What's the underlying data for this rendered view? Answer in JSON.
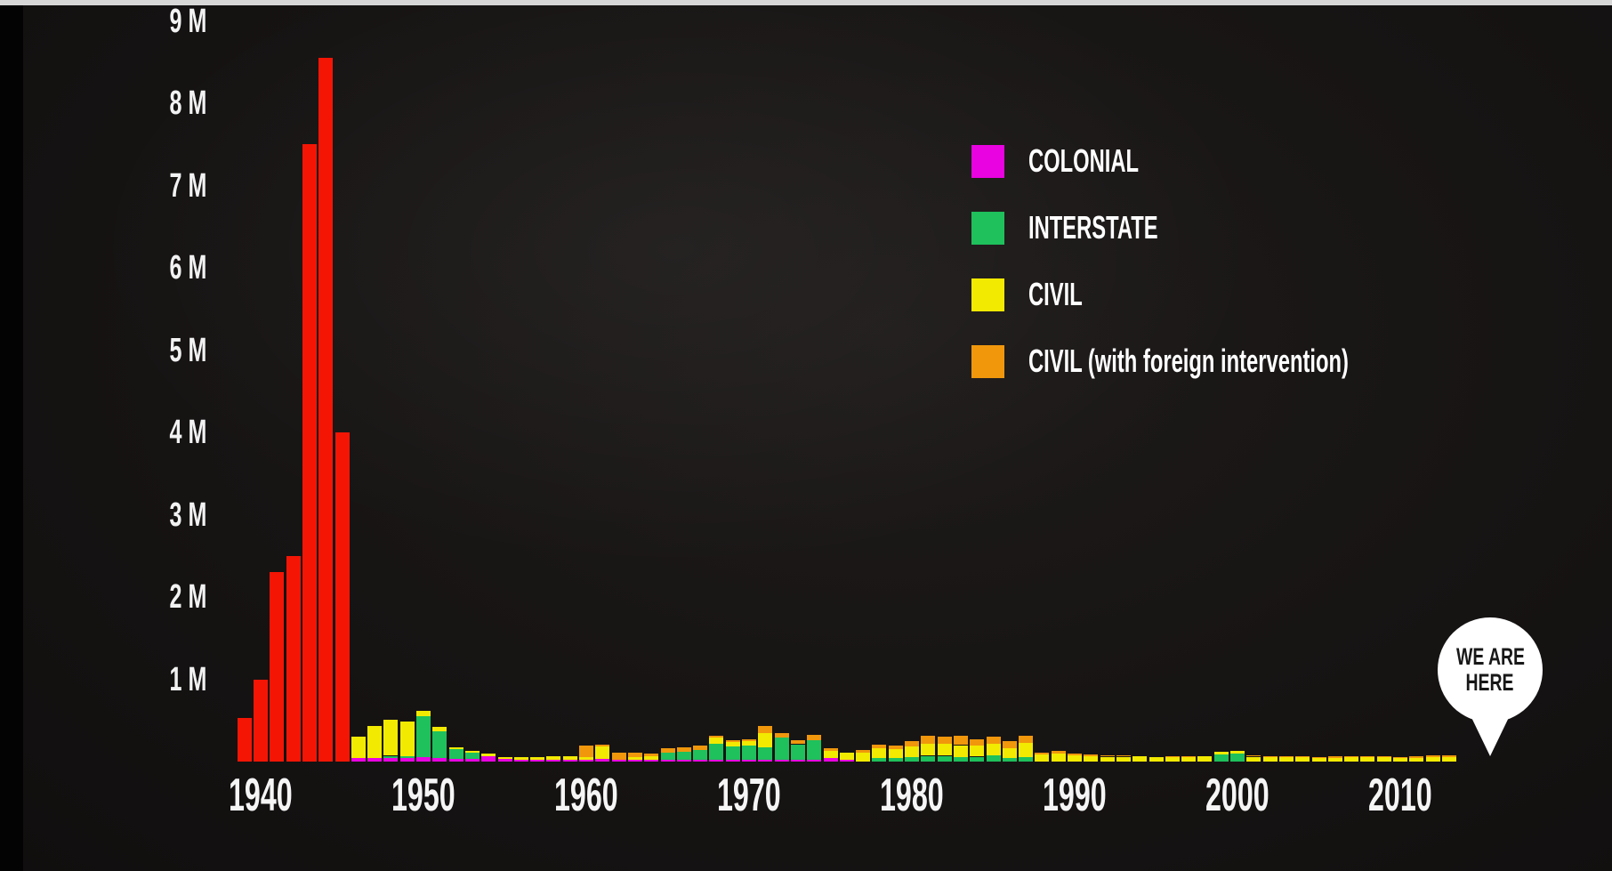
{
  "y_axis": {
    "labels": [
      {
        "text": "9 M",
        "value": 9
      },
      {
        "text": "8 M",
        "value": 8
      },
      {
        "text": "7 M",
        "value": 7
      },
      {
        "text": "6 M",
        "value": 6
      },
      {
        "text": "5 M",
        "value": 5
      },
      {
        "text": "4 M",
        "value": 4
      },
      {
        "text": "3 M",
        "value": 3
      },
      {
        "text": "2 M",
        "value": 2
      },
      {
        "text": "1 M",
        "value": 1
      }
    ]
  },
  "x_axis": {
    "labels": [
      {
        "text": "1940",
        "value": 1940
      },
      {
        "text": "1950",
        "value": 1950
      },
      {
        "text": "1960",
        "value": 1960
      },
      {
        "text": "1970",
        "value": 1970
      },
      {
        "text": "1980",
        "value": 1980
      },
      {
        "text": "1990",
        "value": 1990
      },
      {
        "text": "2000",
        "value": 2000
      },
      {
        "text": "2010",
        "value": 2010
      }
    ]
  },
  "legend": {
    "items": [
      {
        "label": "COLONIAL",
        "color": "#e803e0"
      },
      {
        "label": "INTERSTATE",
        "color": "#1ec15c"
      },
      {
        "label": "CIVIL",
        "color": "#f2ea00"
      },
      {
        "label": "CIVIL (with foreign intervention)",
        "color": "#f0970c"
      }
    ]
  },
  "marker": {
    "line1": "WE ARE",
    "line2": "HERE",
    "bubble_color": "#ffffff",
    "text_color": "#181818"
  },
  "chart_data": {
    "type": "bar",
    "subtype": "stacked",
    "unit": "millions of deaths per year",
    "ylim": [
      0,
      9.3
    ],
    "grid": false,
    "legend_position": "upper-right",
    "background_color": "#161313",
    "years": [
      1939,
      1940,
      1941,
      1942,
      1943,
      1944,
      1945,
      1946,
      1947,
      1948,
      1949,
      1950,
      1951,
      1952,
      1953,
      1954,
      1955,
      1956,
      1957,
      1958,
      1959,
      1960,
      1961,
      1962,
      1963,
      1964,
      1965,
      1966,
      1967,
      1968,
      1969,
      1970,
      1971,
      1972,
      1973,
      1974,
      1975,
      1976,
      1977,
      1978,
      1979,
      1980,
      1981,
      1982,
      1983,
      1984,
      1985,
      1986,
      1987,
      1988,
      1989,
      1990,
      1991,
      1992,
      1993,
      1994,
      1995,
      1996,
      1997,
      1998,
      1999,
      2000,
      2001,
      2002,
      2003,
      2004,
      2005,
      2006,
      2007,
      2008,
      2009,
      2010,
      2011,
      2012,
      2013
    ],
    "series": [
      {
        "id": "colonial",
        "legend_label": "COLONIAL",
        "color": "#e803e0",
        "values": [
          0,
          0,
          0,
          0,
          0,
          0,
          0,
          0.04,
          0.04,
          0.04,
          0.04,
          0.05,
          0.04,
          0.03,
          0.03,
          0.07,
          0.03,
          0.02,
          0.02,
          0.02,
          0.02,
          0.02,
          0.03,
          0.02,
          0.02,
          0.02,
          0.02,
          0.02,
          0.02,
          0.02,
          0.02,
          0.02,
          0.02,
          0.02,
          0.02,
          0.02,
          0.04,
          0.02,
          0,
          0,
          0,
          0,
          0,
          0,
          0,
          0,
          0,
          0,
          0,
          0,
          0,
          0,
          0,
          0,
          0,
          0,
          0,
          0,
          0,
          0,
          0,
          0,
          0,
          0,
          0,
          0,
          0,
          0,
          0,
          0,
          0,
          0,
          0,
          0,
          0,
          0
        ]
      },
      {
        "id": "interstate",
        "legend_label": "INTERSTATE",
        "color": "#1ec15c",
        "values": [
          0,
          0,
          0,
          0,
          0,
          0,
          0,
          0,
          0,
          0.03,
          0.03,
          0.5,
          0.33,
          0.12,
          0.08,
          0,
          0,
          0,
          0,
          0,
          0,
          0,
          0,
          0,
          0,
          0,
          0.09,
          0.1,
          0.12,
          0.2,
          0.16,
          0.17,
          0.15,
          0.27,
          0.19,
          0.24,
          0,
          0,
          0,
          0.04,
          0.04,
          0.05,
          0.07,
          0.07,
          0.06,
          0.06,
          0.08,
          0.04,
          0.05,
          0,
          0,
          0,
          0,
          0,
          0,
          0,
          0,
          0,
          0,
          0,
          0.09,
          0.1,
          0,
          0,
          0,
          0,
          0,
          0,
          0,
          0,
          0,
          0,
          0,
          0,
          0
        ]
      },
      {
        "id": "civil",
        "legend_label": "CIVIL",
        "color": "#f2ea00",
        "values": [
          0,
          0,
          0,
          0,
          0,
          0,
          0,
          0.26,
          0.39,
          0.44,
          0.42,
          0.07,
          0.05,
          0.02,
          0.02,
          0.03,
          0.02,
          0.03,
          0.03,
          0.04,
          0.05,
          0.03,
          0.15,
          0,
          0.03,
          0.04,
          0,
          0,
          0,
          0.07,
          0.06,
          0.06,
          0.18,
          0,
          0,
          0,
          0.09,
          0.09,
          0.11,
          0.12,
          0.11,
          0.13,
          0.15,
          0.15,
          0.14,
          0.13,
          0.14,
          0.12,
          0.18,
          0.09,
          0.1,
          0.08,
          0.07,
          0.06,
          0.06,
          0.07,
          0.06,
          0.06,
          0.05,
          0.07,
          0.03,
          0.03,
          0.06,
          0.05,
          0.05,
          0.05,
          0.04,
          0.04,
          0.05,
          0.05,
          0.05,
          0.04,
          0.04,
          0.05,
          0.05
        ]
      },
      {
        "id": "civil_foreign_intervention",
        "legend_label": "CIVIL (with foreign intervention)",
        "color": "#f0970c",
        "values": [
          0,
          0,
          0,
          0,
          0,
          0,
          0,
          0,
          0,
          0,
          0,
          0,
          0,
          0,
          0,
          0,
          0,
          0,
          0,
          0,
          0,
          0.15,
          0.03,
          0.09,
          0.06,
          0.04,
          0.05,
          0.05,
          0.05,
          0.02,
          0.02,
          0.02,
          0.08,
          0.06,
          0.05,
          0.06,
          0.03,
          0,
          0.03,
          0.05,
          0.05,
          0.07,
          0.09,
          0.08,
          0.11,
          0.08,
          0.08,
          0.09,
          0.08,
          0.02,
          0.03,
          0.02,
          0.02,
          0.02,
          0.02,
          0,
          0,
          0.01,
          0.02,
          0,
          0,
          0,
          0.02,
          0.02,
          0.02,
          0.02,
          0.01,
          0.02,
          0.02,
          0.01,
          0.01,
          0.01,
          0.02,
          0.03,
          0.03
        ]
      },
      {
        "id": "world_war_red",
        "legend_label": null,
        "color": "#f41505",
        "values": [
          0.53,
          1.0,
          2.3,
          2.5,
          7.5,
          8.55,
          4.0,
          0,
          0,
          0,
          0,
          0,
          0,
          0,
          0,
          0,
          0,
          0,
          0,
          0,
          0,
          0,
          0,
          0,
          0,
          0,
          0,
          0,
          0,
          0,
          0,
          0,
          0,
          0,
          0,
          0,
          0,
          0,
          0,
          0,
          0,
          0,
          0,
          0,
          0,
          0,
          0,
          0,
          0,
          0,
          0,
          0,
          0,
          0,
          0,
          0,
          0,
          0,
          0,
          0,
          0,
          0,
          0,
          0,
          0,
          0,
          0,
          0,
          0,
          0,
          0,
          0,
          0,
          0,
          0
        ]
      }
    ]
  }
}
